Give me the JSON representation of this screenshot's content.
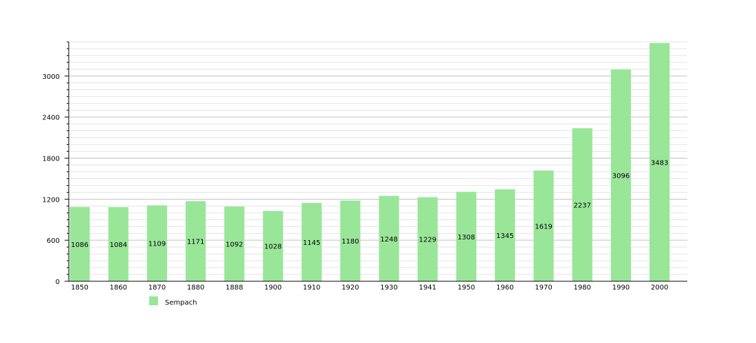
{
  "chart_data": {
    "type": "bar",
    "categories": [
      "1850",
      "1860",
      "1870",
      "1880",
      "1888",
      "1900",
      "1910",
      "1920",
      "1930",
      "1941",
      "1950",
      "1960",
      "1970",
      "1980",
      "1990",
      "2000"
    ],
    "series": [
      {
        "name": "Sempach",
        "values": [
          1086,
          1084,
          1109,
          1171,
          1092,
          1028,
          1145,
          1180,
          1248,
          1229,
          1308,
          1345,
          1619,
          2237,
          3096,
          3483
        ],
        "labels": [
          "1086",
          "1084",
          "1109",
          "1171",
          "1092",
          "1028",
          "1145",
          "1180",
          "1248",
          "1229",
          "1308",
          "1345",
          "1619",
          "2237",
          "3096",
          "3483"
        ]
      }
    ],
    "ylim": [
      0,
      3500
    ],
    "yticks": [
      {
        "value": 0,
        "label": "0"
      },
      {
        "value": 600,
        "label": "600"
      },
      {
        "value": 1200,
        "label": "1200"
      },
      {
        "value": 1800,
        "label": "1800"
      },
      {
        "value": 2400,
        "label": "2400"
      },
      {
        "value": 3000,
        "label": "3000"
      }
    ],
    "minor_tick_step": 100,
    "grid": true,
    "legend_position": "bottom-left",
    "colors": {
      "bar": "#99e699",
      "major_grid": "#c0c0c0",
      "minor_grid": "#e4e4e4",
      "axis": "#000000"
    }
  }
}
